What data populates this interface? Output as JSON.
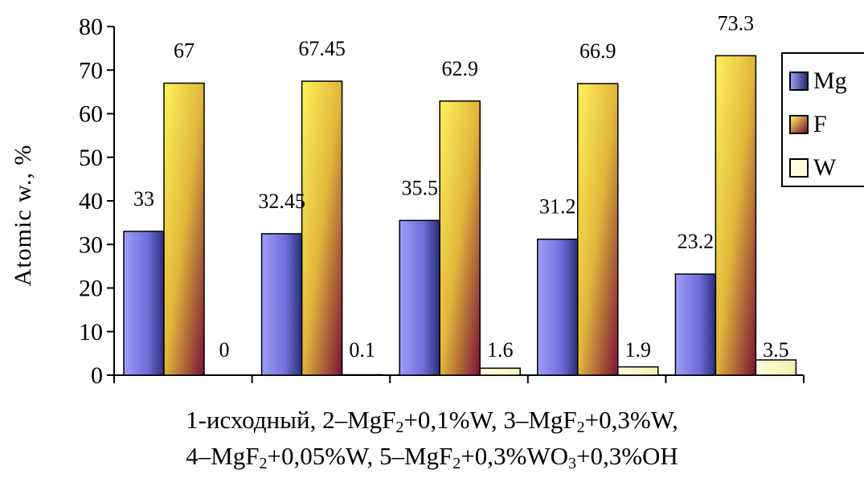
{
  "chart_data": {
    "type": "bar",
    "ylabel": "Atomic w., %",
    "ylim": [
      0,
      80
    ],
    "yticks": [
      0,
      10,
      20,
      30,
      40,
      50,
      60,
      70,
      80
    ],
    "categories": [
      "1",
      "2",
      "3",
      "4",
      "5"
    ],
    "series": [
      {
        "name": "Mg",
        "values": [
          33,
          32.45,
          35.5,
          31.2,
          23.2
        ],
        "labels": [
          "33",
          "32.45",
          "35.5",
          "31.2",
          "23.2"
        ],
        "color": "#7b7be6"
      },
      {
        "name": "F",
        "values": [
          67,
          67.45,
          62.9,
          66.9,
          73.3
        ],
        "labels": [
          "67",
          "67.45",
          "62.9",
          "66.9",
          "73.3"
        ],
        "color": "#d6b43a"
      },
      {
        "name": "W",
        "values": [
          0,
          0.1,
          1.6,
          1.9,
          3.5
        ],
        "labels": [
          "0",
          "0.1",
          "1.6",
          "1.9",
          "3.5"
        ],
        "color": "#ffffcc"
      }
    ],
    "legend_position": "right",
    "grid": false
  },
  "caption": {
    "line1": [
      {
        "text": "1-исходный, 2–MgF"
      },
      {
        "sub": "2"
      },
      {
        "text": "+0,1%W, 3–MgF"
      },
      {
        "sub": "2"
      },
      {
        "text": "+0,3%W,"
      }
    ],
    "line2": [
      {
        "text": "4–MgF"
      },
      {
        "sub": "2"
      },
      {
        "text": "+0,05%W, 5–MgF"
      },
      {
        "sub": "2"
      },
      {
        "text": "+0,3%WO"
      },
      {
        "sub": "3"
      },
      {
        "text": "+0,3%OH"
      }
    ]
  }
}
